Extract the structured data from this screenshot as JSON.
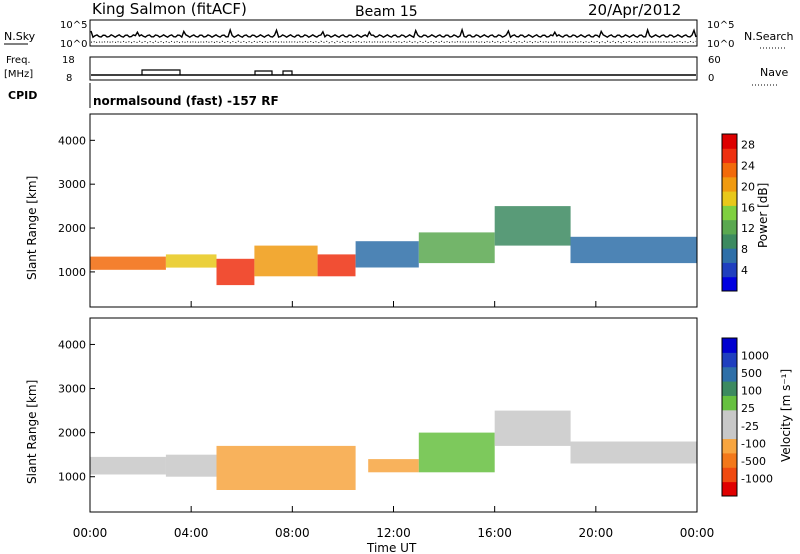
{
  "header": {
    "station": "King Salmon (fitACF)",
    "beam": "Beam 15",
    "date": "20/Apr/2012"
  },
  "sky_panel": {
    "left_label": "N.Sky",
    "right_label": "N.Search",
    "left_ticks": [
      "10^5",
      "10^0"
    ],
    "right_ticks": [
      "10^5",
      "10^0"
    ]
  },
  "freq_panel": {
    "left_label_line1": "Freq.",
    "left_label_line2": "[MHz]",
    "right_label": "Nave",
    "left_ticks": [
      "18",
      "8"
    ],
    "right_ticks": [
      "60",
      "0"
    ]
  },
  "cpid_panel": {
    "label": "CPID",
    "text": "normalsound (fast) -157 RF"
  },
  "colors": {
    "power_scale": [
      "#0000e0",
      "#1f3fbf",
      "#2e6fa8",
      "#3c8a60",
      "#5aa850",
      "#7fd040",
      "#e8c81a",
      "#f09a10",
      "#f26a0a",
      "#ee3010",
      "#dd0000"
    ],
    "velocity_scale": [
      "#e00000",
      "#f04a10",
      "#f3781a",
      "#f7a540",
      "#c8c8c8",
      "#c8c8c8",
      "#66c040",
      "#3c8a60",
      "#2e6fa8",
      "#1f3fbf",
      "#0000d0"
    ]
  },
  "chart_data": [
    {
      "type": "heatmap",
      "name": "power",
      "ylabel": "Slant Range [km]",
      "yticks": [
        "1000",
        "2000",
        "3000",
        "4000"
      ],
      "ylim": [
        200,
        4600
      ],
      "colorbar": {
        "label": "Power [dB]",
        "ticks": [
          "4",
          "8",
          "12",
          "16",
          "20",
          "24",
          "28"
        ],
        "range": [
          0,
          30
        ]
      },
      "bands": [
        {
          "x": [
            0,
            3
          ],
          "y": [
            1050,
            1350
          ],
          "value": 24
        },
        {
          "x": [
            3,
            5
          ],
          "y": [
            1100,
            1400
          ],
          "value": 18
        },
        {
          "x": [
            5,
            6.5
          ],
          "y": [
            700,
            1300
          ],
          "value": 25
        },
        {
          "x": [
            6.5,
            9
          ],
          "y": [
            900,
            1600
          ],
          "value": 20
        },
        {
          "x": [
            9,
            10.5
          ],
          "y": [
            900,
            1400
          ],
          "value": 27
        },
        {
          "x": [
            10.5,
            13
          ],
          "y": [
            1100,
            1700
          ],
          "value": 8
        },
        {
          "x": [
            13,
            16
          ],
          "y": [
            1200,
            1900
          ],
          "value": 12
        },
        {
          "x": [
            16,
            19
          ],
          "y": [
            1600,
            2500
          ],
          "value": 10
        },
        {
          "x": [
            19,
            24
          ],
          "y": [
            1200,
            1800
          ],
          "value": 6
        }
      ]
    },
    {
      "type": "heatmap",
      "name": "velocity",
      "ylabel": "Slant Range [km]",
      "yticks": [
        "1000",
        "2000",
        "3000",
        "4000"
      ],
      "ylim": [
        200,
        4600
      ],
      "colorbar": {
        "label": "Velocity [m s⁻¹]",
        "ticks": [
          "1000",
          "500",
          "100",
          "25",
          "-25",
          "-100",
          "-500",
          "-1000"
        ],
        "range": [
          -1000,
          1000
        ]
      },
      "bands": [
        {
          "x": [
            0,
            3
          ],
          "y": [
            1050,
            1450
          ],
          "value": 0
        },
        {
          "x": [
            3,
            5
          ],
          "y": [
            1000,
            1500
          ],
          "value": -200
        },
        {
          "x": [
            5,
            10.5
          ],
          "y": [
            700,
            1700
          ],
          "value": -450
        },
        {
          "x": [
            11,
            13
          ],
          "y": [
            1100,
            1400
          ],
          "value": -400
        },
        {
          "x": [
            13,
            16
          ],
          "y": [
            1100,
            2000
          ],
          "value": 150
        },
        {
          "x": [
            16,
            19
          ],
          "y": [
            1700,
            2500
          ],
          "value": -100
        },
        {
          "x": [
            19,
            24
          ],
          "y": [
            1300,
            1800
          ],
          "value": 0
        }
      ]
    }
  ],
  "x_axis": {
    "label": "Time UT",
    "ticks": [
      "00:00",
      "04:00",
      "08:00",
      "12:00",
      "16:00",
      "20:00",
      "00:00"
    ],
    "range": [
      0,
      24
    ]
  }
}
